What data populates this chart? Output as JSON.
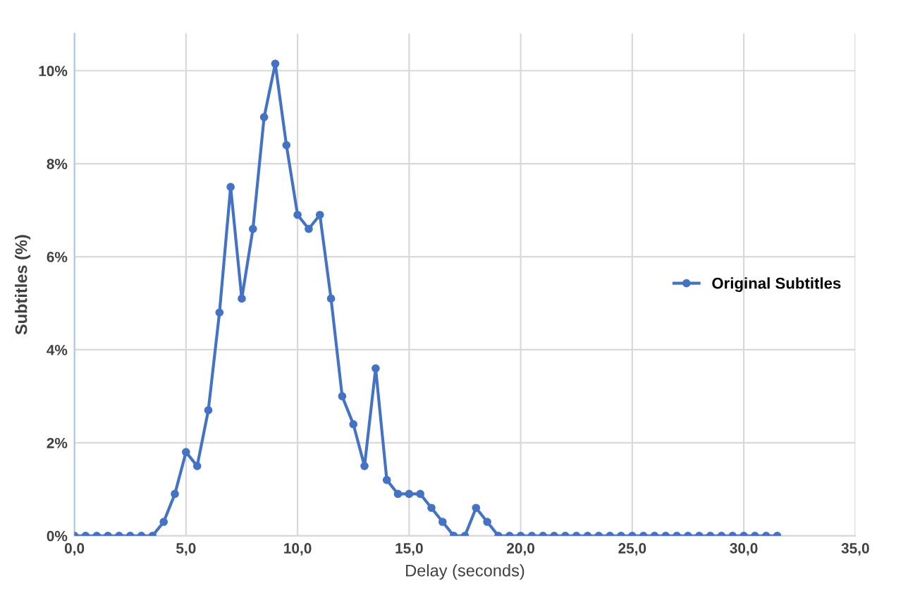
{
  "chart_data": {
    "type": "line",
    "xlabel": "Delay (seconds)",
    "ylabel": "Subtitles (%)",
    "x": [
      0,
      0.5,
      1,
      1.5,
      2,
      2.5,
      3,
      3.5,
      4,
      4.5,
      5,
      5.5,
      6,
      6.5,
      7,
      7.5,
      8,
      8.5,
      9,
      9.5,
      10,
      10.5,
      11,
      11.5,
      12,
      12.5,
      13,
      13.5,
      14,
      14.5,
      15,
      15.5,
      16,
      16.5,
      17,
      17.5,
      18,
      18.5,
      19,
      19.5,
      20,
      20.5,
      21,
      21.5,
      22,
      22.5,
      23,
      23.5,
      24,
      24.5,
      25,
      25.5,
      26,
      26.5,
      27,
      27.5,
      28,
      28.5,
      29,
      29.5,
      30,
      30.5,
      31,
      31.5
    ],
    "series": [
      {
        "name": "Original Subtitles",
        "color": "#4472c4",
        "values": [
          0,
          0,
          0,
          0,
          0,
          0,
          0,
          0,
          0.3,
          0.9,
          1.8,
          1.5,
          2.7,
          4.8,
          7.5,
          5.1,
          6.6,
          9.0,
          10.15,
          8.4,
          6.9,
          6.6,
          6.9,
          5.1,
          3.0,
          2.4,
          1.5,
          3.6,
          1.2,
          0.9,
          0.9,
          0.9,
          0.6,
          0.3,
          0,
          0,
          0.6,
          0.3,
          0,
          0,
          0,
          0,
          0,
          0,
          0,
          0,
          0,
          0,
          0,
          0,
          0,
          0,
          0,
          0,
          0,
          0,
          0,
          0,
          0,
          0,
          0,
          0,
          0,
          0
        ]
      }
    ],
    "xlim": [
      0,
      35
    ],
    "xticks": [
      {
        "value": 0,
        "label": "0,0"
      },
      {
        "value": 5,
        "label": "5,0"
      },
      {
        "value": 10,
        "label": "10,0"
      },
      {
        "value": 15,
        "label": "15,0"
      },
      {
        "value": 20,
        "label": "20,0"
      },
      {
        "value": 25,
        "label": "25,0"
      },
      {
        "value": 30,
        "label": "30,0"
      },
      {
        "value": 35,
        "label": "35,0"
      }
    ],
    "ylim": [
      0,
      10.8
    ],
    "yticks": [
      {
        "value": 0,
        "label": "0%"
      },
      {
        "value": 2,
        "label": "2%"
      },
      {
        "value": 4,
        "label": "4%"
      },
      {
        "value": 6,
        "label": "6%"
      },
      {
        "value": 8,
        "label": "8%"
      },
      {
        "value": 10,
        "label": "10%"
      }
    ],
    "grid": true,
    "legend": "right",
    "marker": "circle",
    "line_style": "solid"
  }
}
